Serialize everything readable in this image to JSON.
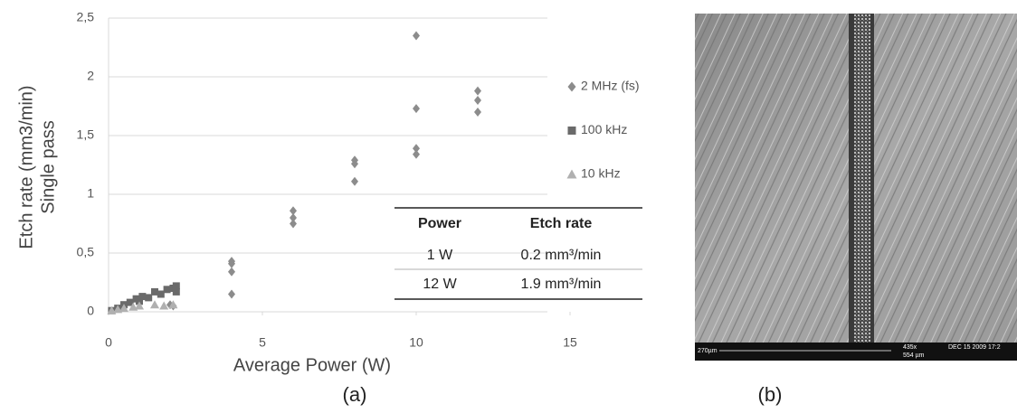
{
  "chart_data": {
    "type": "scatter",
    "y_label_lines": [
      "Etch rate (mm3/min)",
      "Single pass"
    ],
    "x_label": "Average Power (W)",
    "xlim": [
      0,
      15
    ],
    "xticks": [
      0,
      5,
      10,
      15
    ],
    "ylim": [
      0,
      2.5
    ],
    "yticks": [
      0,
      {
        "value": 0.5,
        "label": "0,5"
      },
      1,
      {
        "value": 1.5,
        "label": "1,5"
      },
      2,
      {
        "value": 2.5,
        "label": "2,5"
      }
    ],
    "grid": true,
    "series": [
      {
        "name": "2 MHz (fs)",
        "color": "#8c8c8c",
        "marker": "diamond",
        "x": [
          2.0,
          2.1,
          4,
          4,
          4,
          4,
          6,
          6,
          6,
          8,
          8,
          8,
          10,
          10,
          10,
          10,
          12,
          12,
          12
        ],
        "values": [
          0.06,
          0.05,
          0.43,
          0.41,
          0.34,
          0.15,
          0.86,
          0.8,
          0.75,
          1.29,
          1.26,
          1.11,
          2.35,
          1.73,
          1.39,
          1.34,
          1.88,
          1.8,
          1.7
        ]
      },
      {
        "name": "100 kHz",
        "color": "#6a6a6a",
        "marker": "square",
        "x": [
          0.1,
          0.3,
          0.5,
          0.7,
          0.9,
          1.0,
          1.1,
          1.3,
          1.5,
          1.7,
          1.9,
          2.1,
          2.2,
          2.2
        ],
        "values": [
          0.01,
          0.03,
          0.06,
          0.08,
          0.11,
          0.09,
          0.13,
          0.12,
          0.17,
          0.15,
          0.19,
          0.2,
          0.22,
          0.17
        ]
      },
      {
        "name": "10 kHz",
        "color": "#b0b0b0",
        "marker": "triangle",
        "x": [
          0.1,
          0.3,
          0.5,
          0.8,
          1.0,
          1.5,
          1.8,
          2.1
        ],
        "values": [
          0.01,
          0.02,
          0.03,
          0.04,
          0.05,
          0.06,
          0.05,
          0.06
        ]
      }
    ]
  },
  "table": {
    "header": [
      "Power",
      "Etch rate"
    ],
    "rows": [
      [
        "1 W",
        "0.2 mm³/min"
      ],
      [
        "12 W",
        "1.9 mm³/min"
      ]
    ]
  },
  "image": {
    "scale": "270µm",
    "magnification": "435x",
    "field": "554 µm",
    "date": "DEC 15 2009 17:2"
  },
  "captions": [
    "(a)",
    "(b)"
  ]
}
